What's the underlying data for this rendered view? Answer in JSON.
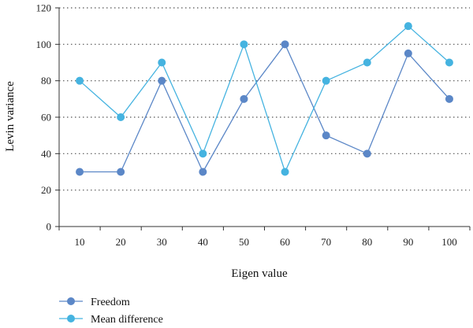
{
  "chart_data": {
    "type": "line",
    "title": "",
    "xlabel": "Eigen value",
    "ylabel": "Levin variance",
    "x": [
      10,
      20,
      30,
      40,
      50,
      60,
      70,
      80,
      90,
      100
    ],
    "x_tick_labels": [
      "10",
      "20",
      "30",
      "40",
      "50",
      "60",
      "70",
      "80",
      "90",
      "100"
    ],
    "y_tick_labels": [
      "0",
      "20",
      "40",
      "60",
      "80",
      "100",
      "120"
    ],
    "ylim": [
      0,
      120
    ],
    "grid": "horizontal dotted",
    "legend_position": "bottom-left",
    "series": [
      {
        "name": "Freedom",
        "color": "#5b87c7",
        "values": [
          30,
          30,
          80,
          30,
          70,
          100,
          50,
          40,
          95,
          70
        ]
      },
      {
        "name": "Mean difference",
        "color": "#45b3e0",
        "values": [
          80,
          60,
          90,
          40,
          100,
          30,
          80,
          90,
          110,
          90
        ]
      }
    ]
  }
}
